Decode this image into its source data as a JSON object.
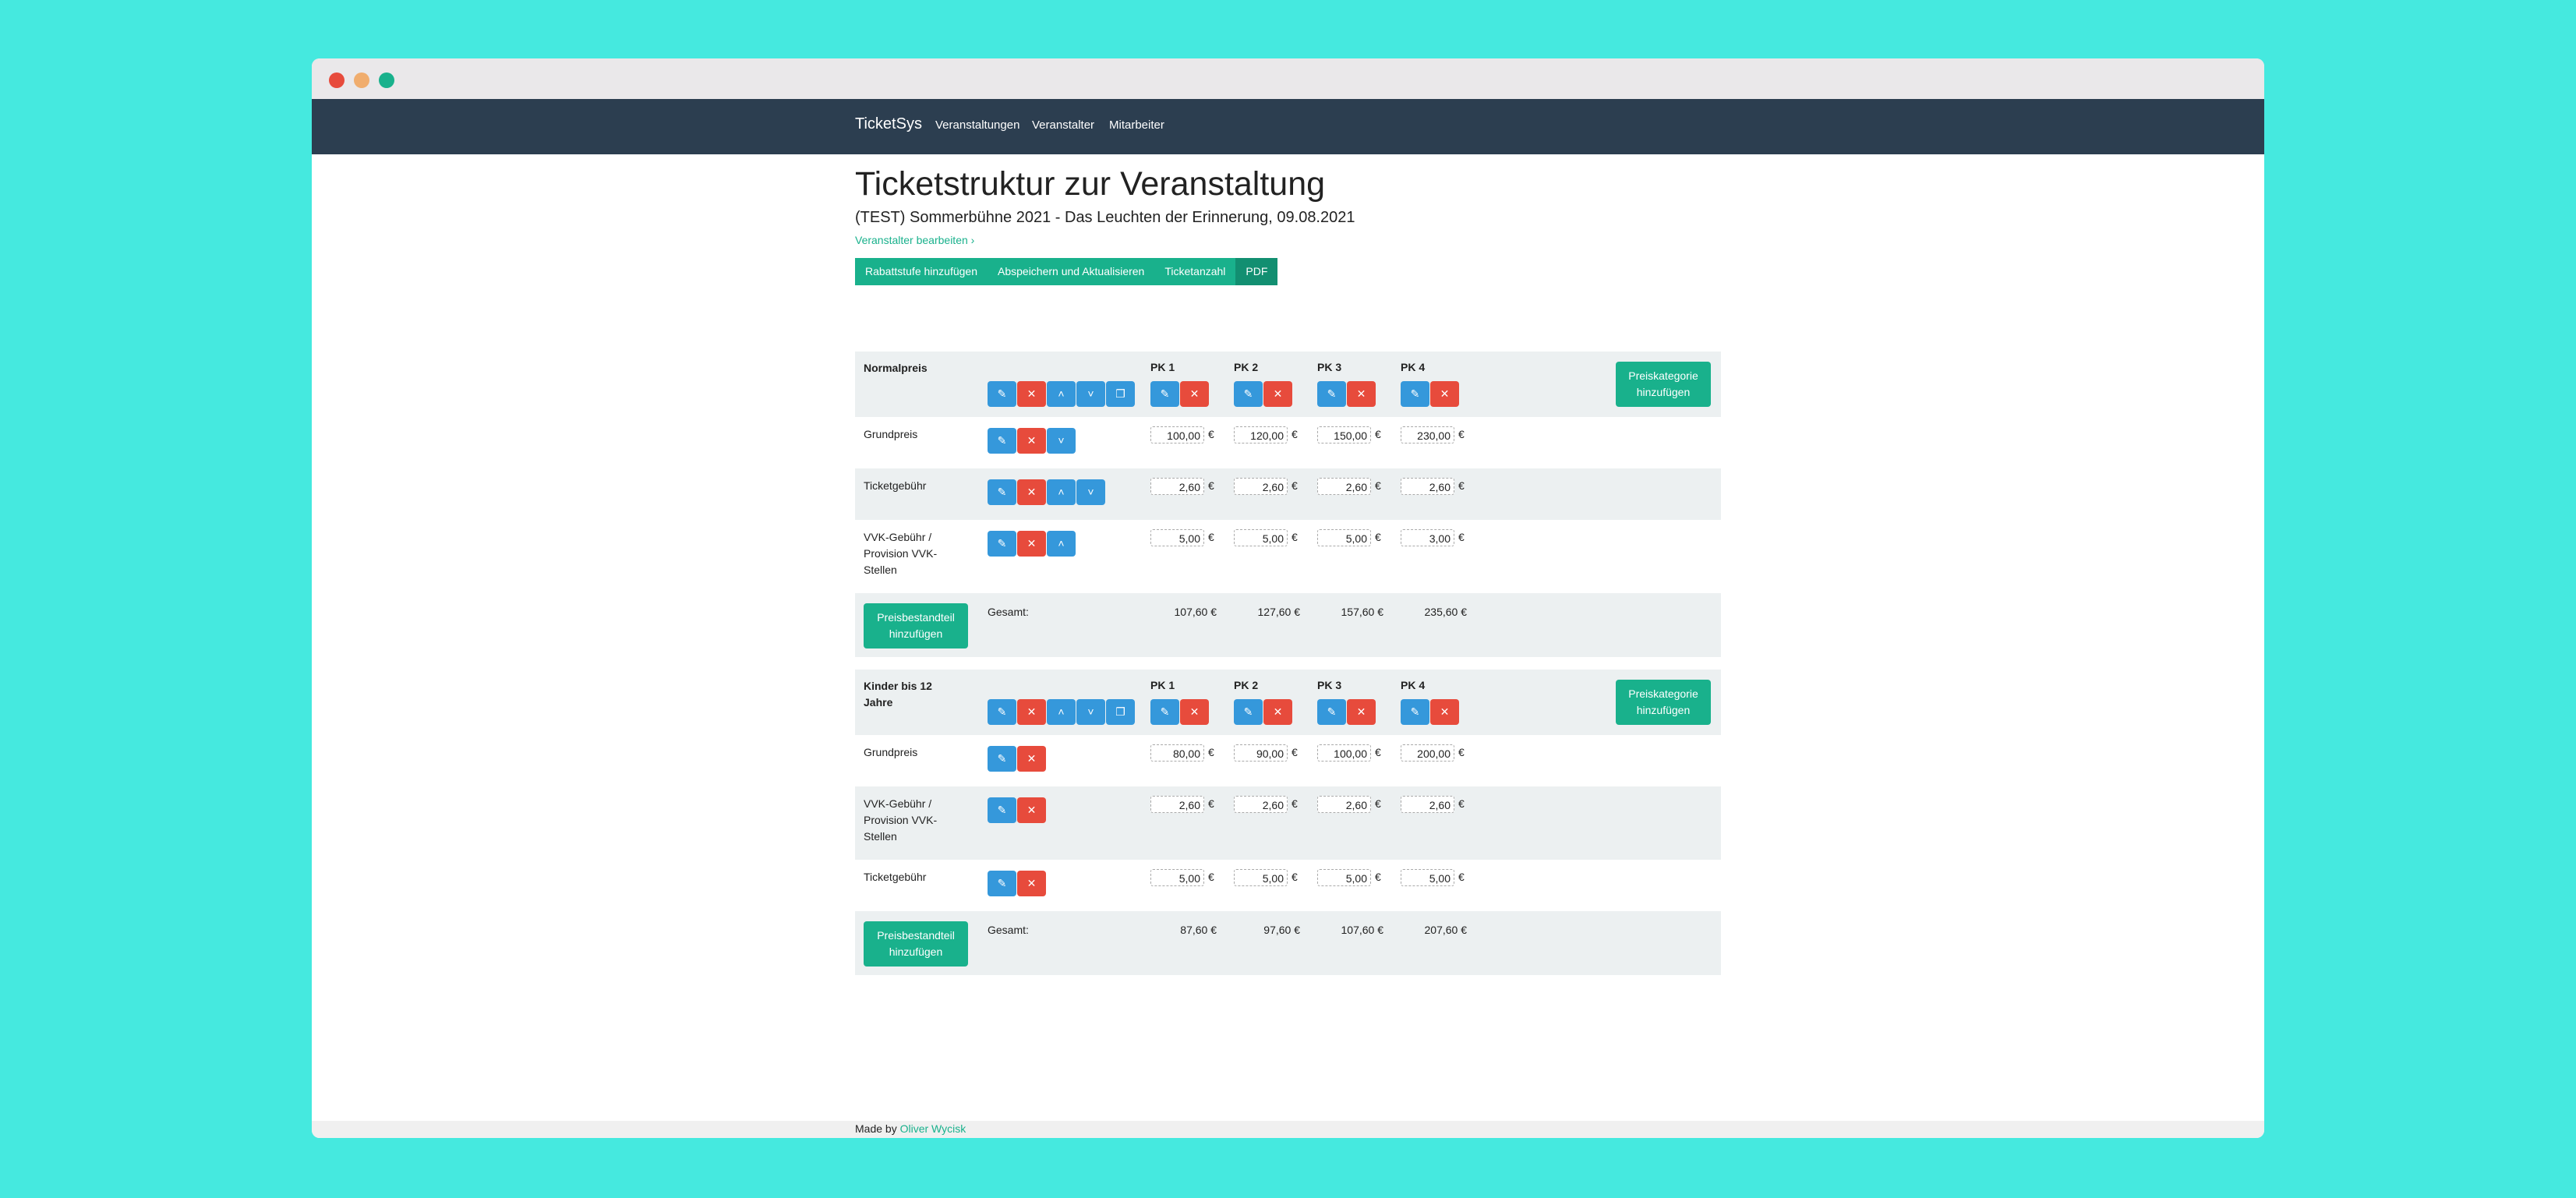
{
  "window": {
    "controls": [
      "close",
      "minimize",
      "maximize"
    ]
  },
  "navbar": {
    "brand": "TicketSys",
    "links": [
      "Veranstaltungen",
      "Veranstalter",
      "Mitarbeiter"
    ]
  },
  "page": {
    "title": "Ticketstruktur zur Veranstaltung",
    "subtitle": "(TEST) Sommerbühne 2021 - Das Leuchten der Erinnerung, 09.08.2021",
    "edit_link": "Veranstalter bearbeiten",
    "edit_link_icon": "chevron-right-icon"
  },
  "toolbar": {
    "add_discount": "Rabattstufe hinzufügen",
    "save_update": "Abspeichern und Aktualisieren",
    "ticket_count": "Ticketanzahl",
    "pdf": "PDF"
  },
  "icons": {
    "edit": "edit-icon",
    "delete": "trash-icon",
    "up": "chevron-up-icon",
    "down": "chevron-down-icon",
    "copy": "copy-icon"
  },
  "colors": {
    "primary": "#19b18c",
    "blue": "#3598db",
    "red": "#e74b3c",
    "navbar": "#2c3e50"
  },
  "categories": [
    {
      "name": "Normalpreis",
      "price_classes": [
        "PK 1",
        "PK 2",
        "PK 3",
        "PK 4"
      ],
      "add_price_class": "Preiskategorie hinzufügen",
      "components": [
        {
          "label": "Grundpreis",
          "prices": [
            "100,00",
            "120,00",
            "150,00",
            "230,00"
          ]
        },
        {
          "label": "Ticketgebühr",
          "prices": [
            "2,60",
            "2,60",
            "2,60",
            "2,60"
          ]
        },
        {
          "label": "VVK-Gebühr / Provision VVK-Stellen",
          "prices": [
            "5,00",
            "5,00",
            "5,00",
            "3,00"
          ]
        }
      ],
      "add_component": "Preisbestandteil hinzufügen",
      "total_label": "Gesamt:",
      "totals": [
        "107,60 €",
        "127,60 €",
        "157,60 €",
        "235,60 €"
      ]
    },
    {
      "name": "Kinder bis 12 Jahre",
      "price_classes": [
        "PK 1",
        "PK 2",
        "PK 3",
        "PK 4"
      ],
      "add_price_class": "Preiskategorie hinzufügen",
      "components": [
        {
          "label": "Grundpreis",
          "prices": [
            "80,00",
            "90,00",
            "100,00",
            "200,00"
          ]
        },
        {
          "label": "VVK-Gebühr / Provision VVK-Stellen",
          "prices": [
            "2,60",
            "2,60",
            "2,60",
            "2,60"
          ]
        },
        {
          "label": "Ticketgebühr",
          "prices": [
            "5,00",
            "5,00",
            "5,00",
            "5,00"
          ]
        }
      ],
      "add_component": "Preisbestandteil hinzufügen",
      "total_label": "Gesamt:",
      "totals": [
        "87,60 €",
        "97,60 €",
        "107,60 €",
        "207,60 €"
      ]
    }
  ],
  "currency": "€",
  "footer": {
    "prefix": "Made by",
    "author": "Oliver Wycisk"
  }
}
